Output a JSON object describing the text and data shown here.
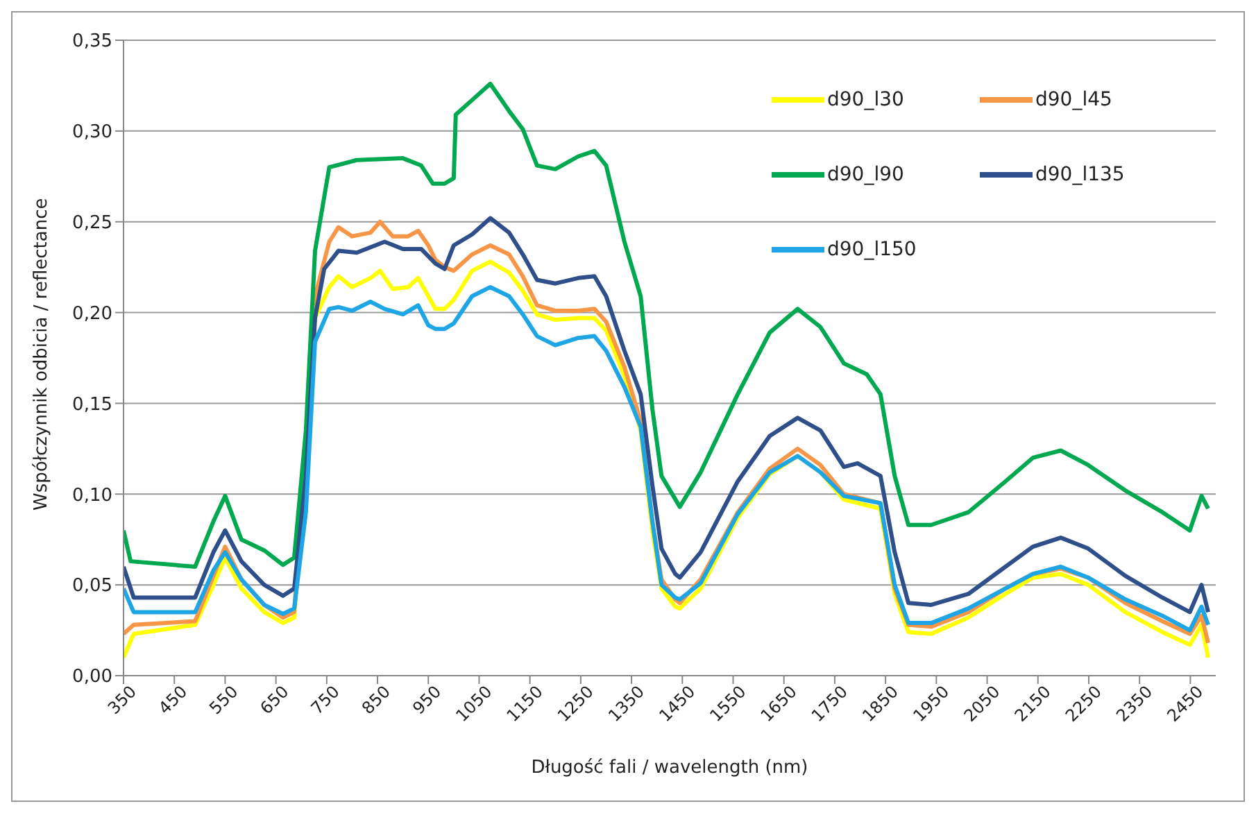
{
  "chart_data": {
    "type": "line",
    "xlabel": "Długość fali / wavelength (nm)",
    "ylabel": "Współczynnik odbicia / reflectance",
    "xlim": [
      350,
      2500
    ],
    "xticks": [
      350,
      450,
      550,
      650,
      750,
      850,
      950,
      1050,
      1150,
      1250,
      1350,
      1450,
      1550,
      1650,
      1750,
      1850,
      1950,
      2050,
      2150,
      2250,
      2350,
      2450
    ],
    "ylim": [
      0,
      0.35
    ],
    "yticks": [
      {
        "value": 0,
        "label": "0,00"
      },
      {
        "value": 0.05,
        "label": "0,05"
      },
      {
        "value": 0.1,
        "label": "0,10"
      },
      {
        "value": 0.15,
        "label": "0,15"
      },
      {
        "value": 0.2,
        "label": "0,20"
      },
      {
        "value": 0.25,
        "label": "0,25"
      },
      {
        "value": 0.3,
        "label": "0,30"
      },
      {
        "value": 0.35,
        "label": "0,35"
      }
    ],
    "grid": "y",
    "legend": "top right",
    "marker": "none",
    "line_style": "solid",
    "series": [
      {
        "name": "d90_l30",
        "color": "#ffff00",
        "x": [
          350,
          370,
          491,
          527,
          550,
          582,
          627,
          664,
          686,
          727,
          755,
          773,
          800,
          836,
          855,
          880,
          910,
          930,
          950,
          964,
          982,
          1000,
          1036,
          1072,
          1109,
          1136,
          1164,
          1200,
          1245,
          1277,
          1300,
          1336,
          1368,
          1391,
          1409,
          1436,
          1445,
          1486,
          1559,
          1622,
          1677,
          1722,
          1768,
          1840,
          1868,
          1895,
          1940,
          2013,
          2086,
          2140,
          2195,
          2249,
          2322,
          2395,
          2449,
          2472,
          2485
        ],
        "values": [
          0.01,
          0.023,
          0.028,
          0.05,
          0.065,
          0.048,
          0.035,
          0.029,
          0.032,
          0.197,
          0.214,
          0.22,
          0.214,
          0.219,
          0.223,
          0.213,
          0.214,
          0.219,
          0.209,
          0.202,
          0.202,
          0.207,
          0.223,
          0.228,
          0.222,
          0.212,
          0.199,
          0.196,
          0.197,
          0.197,
          0.19,
          0.165,
          0.135,
          0.08,
          0.048,
          0.038,
          0.037,
          0.048,
          0.087,
          0.111,
          0.121,
          0.112,
          0.097,
          0.092,
          0.045,
          0.024,
          0.023,
          0.032,
          0.045,
          0.054,
          0.056,
          0.05,
          0.035,
          0.024,
          0.017,
          0.028,
          0.01
        ]
      },
      {
        "name": "d90_l45",
        "color": "#f79646",
        "x": [
          350,
          370,
          491,
          527,
          550,
          582,
          627,
          664,
          686,
          727,
          755,
          773,
          800,
          836,
          855,
          880,
          910,
          930,
          950,
          964,
          982,
          1000,
          1004,
          1036,
          1072,
          1109,
          1136,
          1164,
          1200,
          1245,
          1277,
          1300,
          1336,
          1368,
          1391,
          1409,
          1436,
          1445,
          1486,
          1559,
          1622,
          1677,
          1722,
          1768,
          1840,
          1868,
          1895,
          1940,
          2013,
          2086,
          2140,
          2195,
          2249,
          2322,
          2395,
          2449,
          2472,
          2485
        ],
        "values": [
          0.023,
          0.028,
          0.03,
          0.055,
          0.071,
          0.053,
          0.039,
          0.032,
          0.035,
          0.209,
          0.239,
          0.247,
          0.242,
          0.244,
          0.25,
          0.242,
          0.242,
          0.245,
          0.237,
          0.229,
          0.225,
          0.223,
          0.224,
          0.232,
          0.237,
          0.232,
          0.22,
          0.204,
          0.201,
          0.201,
          0.202,
          0.195,
          0.17,
          0.14,
          0.085,
          0.053,
          0.042,
          0.04,
          0.053,
          0.09,
          0.114,
          0.125,
          0.116,
          0.1,
          0.095,
          0.048,
          0.028,
          0.027,
          0.035,
          0.048,
          0.056,
          0.059,
          0.054,
          0.04,
          0.03,
          0.023,
          0.033,
          0.018
        ]
      },
      {
        "name": "d90_l90",
        "color": "#00a84f",
        "x": [
          350,
          364,
          491,
          527,
          550,
          582,
          627,
          664,
          686,
          709,
          727,
          755,
          809,
          900,
          936,
          959,
          982,
          1000,
          1004,
          1036,
          1072,
          1109,
          1136,
          1164,
          1200,
          1245,
          1277,
          1300,
          1336,
          1368,
          1391,
          1409,
          1445,
          1486,
          1559,
          1622,
          1677,
          1722,
          1768,
          1813,
          1840,
          1868,
          1895,
          1940,
          2013,
          2086,
          2140,
          2195,
          2249,
          2322,
          2395,
          2449,
          2472,
          2485
        ],
        "values": [
          0.08,
          0.063,
          0.06,
          0.085,
          0.099,
          0.075,
          0.069,
          0.061,
          0.065,
          0.135,
          0.234,
          0.28,
          0.284,
          0.285,
          0.281,
          0.271,
          0.271,
          0.274,
          0.309,
          0.317,
          0.326,
          0.311,
          0.301,
          0.281,
          0.279,
          0.286,
          0.289,
          0.281,
          0.239,
          0.209,
          0.147,
          0.11,
          0.093,
          0.112,
          0.155,
          0.189,
          0.202,
          0.192,
          0.172,
          0.166,
          0.155,
          0.11,
          0.083,
          0.083,
          0.09,
          0.107,
          0.12,
          0.124,
          0.116,
          0.102,
          0.09,
          0.08,
          0.099,
          0.092
        ]
      },
      {
        "name": "d90_l135",
        "color": "#2e4f8a",
        "x": [
          350,
          370,
          491,
          527,
          550,
          582,
          627,
          664,
          686,
          709,
          727,
          745,
          773,
          809,
          864,
          900,
          936,
          964,
          982,
          1000,
          1036,
          1072,
          1109,
          1136,
          1164,
          1200,
          1245,
          1277,
          1300,
          1336,
          1368,
          1391,
          1409,
          1436,
          1445,
          1486,
          1559,
          1622,
          1677,
          1722,
          1768,
          1795,
          1840,
          1868,
          1895,
          1940,
          2013,
          2086,
          2140,
          2195,
          2249,
          2322,
          2395,
          2449,
          2472,
          2485
        ],
        "values": [
          0.06,
          0.043,
          0.043,
          0.068,
          0.08,
          0.063,
          0.05,
          0.044,
          0.048,
          0.11,
          0.197,
          0.224,
          0.234,
          0.233,
          0.239,
          0.235,
          0.235,
          0.227,
          0.224,
          0.237,
          0.243,
          0.252,
          0.244,
          0.232,
          0.218,
          0.216,
          0.219,
          0.22,
          0.209,
          0.179,
          0.155,
          0.105,
          0.07,
          0.056,
          0.054,
          0.068,
          0.107,
          0.132,
          0.142,
          0.135,
          0.115,
          0.117,
          0.11,
          0.068,
          0.04,
          0.039,
          0.045,
          0.06,
          0.071,
          0.076,
          0.07,
          0.055,
          0.043,
          0.035,
          0.05,
          0.035
        ]
      },
      {
        "name": "d90_l150",
        "color": "#1ea5e6",
        "x": [
          350,
          370,
          491,
          527,
          550,
          582,
          627,
          664,
          686,
          709,
          727,
          755,
          773,
          800,
          836,
          864,
          900,
          930,
          950,
          964,
          982,
          1000,
          1036,
          1072,
          1109,
          1136,
          1164,
          1200,
          1245,
          1277,
          1300,
          1336,
          1368,
          1391,
          1409,
          1436,
          1445,
          1486,
          1559,
          1622,
          1677,
          1722,
          1768,
          1840,
          1868,
          1895,
          1940,
          2013,
          2086,
          2140,
          2195,
          2249,
          2322,
          2395,
          2449,
          2472,
          2485
        ],
        "values": [
          0.048,
          0.035,
          0.035,
          0.058,
          0.068,
          0.053,
          0.039,
          0.034,
          0.037,
          0.09,
          0.184,
          0.202,
          0.203,
          0.201,
          0.206,
          0.202,
          0.199,
          0.204,
          0.193,
          0.191,
          0.191,
          0.194,
          0.209,
          0.214,
          0.209,
          0.199,
          0.187,
          0.182,
          0.186,
          0.187,
          0.179,
          0.159,
          0.137,
          0.085,
          0.05,
          0.043,
          0.042,
          0.051,
          0.089,
          0.112,
          0.121,
          0.112,
          0.099,
          0.095,
          0.05,
          0.029,
          0.029,
          0.037,
          0.048,
          0.056,
          0.06,
          0.054,
          0.042,
          0.033,
          0.025,
          0.038,
          0.028
        ]
      }
    ]
  }
}
